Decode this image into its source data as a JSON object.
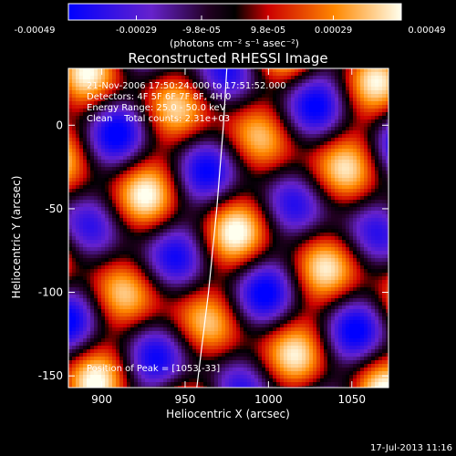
{
  "chart_data": {
    "type": "heatmap",
    "title": "Reconstructed RHESSI Image",
    "xlabel": "Heliocentric X (arcsec)",
    "ylabel": "Heliocentric Y (arcsec)",
    "xlim": [
      880,
      1072
    ],
    "ylim": [
      -157,
      34
    ],
    "x_ticks": [
      900,
      950,
      1000,
      1050
    ],
    "y_ticks": [
      0,
      -50,
      -100,
      -150
    ],
    "colorbar": {
      "range": [
        -0.00049,
        0.00049
      ],
      "tick_values": [
        -0.00049,
        -0.00029,
        -9.8e-05,
        9.8e-05,
        0.00029,
        0.00049
      ],
      "tick_labels": [
        "-0.00049",
        "-0.00029",
        "-9.8e-05",
        "9.8e-05",
        "0.00029",
        "0.00049"
      ],
      "unit_label": "(photons cm⁻² s⁻¹ asec⁻²)"
    },
    "annotations": {
      "time_range": "21-Nov-2006 17:50:24.000 to 17:51:52.000",
      "detectors": "Detectors: 4F 5F 6F 7F 8F, 4H 0",
      "energy": "Energy Range: 25.0 - 50.0 keV",
      "algorithm": "Clean    Total counts: 2.31e+03",
      "peak": "Position of Peak = [1053,-33]"
    },
    "limb_curve": [
      [
        957,
        -157
      ],
      [
        964,
        -100
      ],
      [
        969,
        -50
      ],
      [
        973,
        0
      ],
      [
        975,
        34
      ]
    ],
    "peak_position": [
      1053,
      -33
    ],
    "footer": "17-Jul-2013 11:16"
  }
}
